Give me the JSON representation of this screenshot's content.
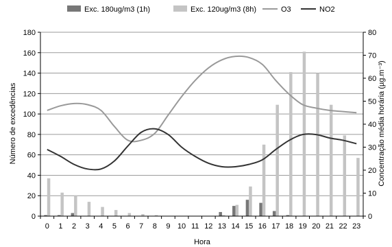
{
  "chart_data": {
    "type": "bar+line",
    "xlabel": "Hora",
    "ylabel_left": "Número de excedências",
    "ylabel_right": "Concentração média horária (µg.m⁻³)",
    "ylim_left": [
      0,
      180
    ],
    "ylim_right": [
      0,
      80
    ],
    "yticks_left": [
      "0",
      "20",
      "40",
      "60",
      "80",
      "100",
      "120",
      "140",
      "160",
      "180"
    ],
    "yticks_right": [
      "0",
      "10",
      "20",
      "30",
      "40",
      "50",
      "60",
      "70",
      "80"
    ],
    "grid": "horizontal",
    "legend_position": "top",
    "categories": [
      "0",
      "1",
      "2",
      "3",
      "4",
      "5",
      "6",
      "7",
      "8",
      "9",
      "10",
      "11",
      "12",
      "13",
      "14",
      "15",
      "16",
      "17",
      "18",
      "19",
      "20",
      "21",
      "22",
      "23"
    ],
    "series": [
      {
        "name": "Exc. 180ug/m3 (1h)",
        "type": "bar",
        "axis": "left",
        "color": "#777777",
        "values": [
          1,
          1,
          3,
          0,
          0,
          0,
          0,
          0,
          0,
          0,
          0,
          0,
          0,
          4,
          10,
          16,
          13,
          5,
          1,
          0,
          0,
          0,
          0,
          0
        ]
      },
      {
        "name": "Exc. 120ug/m3 (8h)",
        "type": "bar",
        "axis": "left",
        "color": "#c4c4c4",
        "values": [
          37,
          23,
          20,
          14,
          9,
          6,
          3,
          2,
          1,
          0,
          0,
          0,
          0,
          1,
          11,
          29,
          70,
          109,
          141,
          161,
          140,
          109,
          79,
          57
        ]
      },
      {
        "name": "O3",
        "type": "line",
        "axis": "right",
        "color": "#999999",
        "values": [
          46,
          48,
          49,
          48.5,
          46,
          39,
          33,
          33,
          36,
          44,
          52,
          59,
          64.5,
          68,
          69.5,
          69,
          66,
          59,
          53,
          48.5,
          47,
          46,
          45.5,
          45
        ]
      },
      {
        "name": "NO2",
        "type": "line",
        "axis": "right",
        "color": "#333333",
        "values": [
          29,
          26,
          22.5,
          20.5,
          20.5,
          24,
          30.5,
          36.5,
          38,
          35.5,
          30,
          26,
          23,
          21.5,
          21.5,
          22.5,
          24.5,
          29,
          33,
          35.5,
          35.5,
          34,
          33,
          31.5
        ]
      }
    ]
  }
}
